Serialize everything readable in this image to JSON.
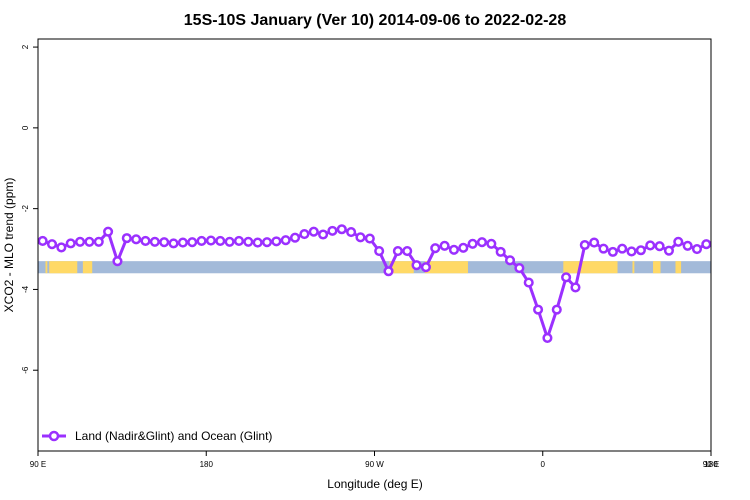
{
  "chart_data": {
    "type": "line",
    "title": "15S-10S January (Ver 10)   2014-09-06 to 2022-02-28",
    "xlabel": "Longitude (deg E)",
    "ylabel": "XCO2 - MLO trend (ppm)",
    "xlim": [
      90,
      450
    ],
    "ylim": [
      -8,
      2.2
    ],
    "x_ticks": [
      {
        "value": 90,
        "label": "90 E"
      },
      {
        "value": 180,
        "label": "180"
      },
      {
        "value": 270,
        "label": "90 W"
      },
      {
        "value": 360,
        "label": "0"
      },
      {
        "value": 450,
        "label": "90 E"
      }
    ],
    "x_ticks_right": [
      {
        "value": 450,
        "label": "180"
      }
    ],
    "y_ticks": [
      {
        "value": 2,
        "label": "2"
      },
      {
        "value": 0,
        "label": "0"
      },
      {
        "value": -2,
        "label": "-2"
      },
      {
        "value": -4,
        "label": "-4"
      },
      {
        "value": -6,
        "label": "-6"
      }
    ],
    "grid": false,
    "legend": {
      "position": "bottom-left"
    },
    "colors": {
      "series": "#9b30ff",
      "ocean": "#a3bad9",
      "land": "#ffd966"
    },
    "surface_strip": {
      "y_bottom": -3.6,
      "y_top": -3.3,
      "land_segments": [
        {
          "x0": 94,
          "x1": 95
        },
        {
          "x0": 96,
          "x1": 111
        },
        {
          "x0": 114,
          "x1": 119
        },
        {
          "x0": 278,
          "x1": 291
        },
        {
          "x0": 297,
          "x1": 320
        },
        {
          "x0": 371,
          "x1": 400
        },
        {
          "x0": 408,
          "x1": 409
        },
        {
          "x0": 419,
          "x1": 423
        },
        {
          "x0": 431,
          "x1": 434
        }
      ]
    },
    "series": [
      {
        "name": "Land (Nadir&Glint) and Ocean (Glint)",
        "x": [
          92.5,
          97.5,
          102.5,
          107.5,
          112.5,
          117.5,
          122.5,
          127.5,
          132.5,
          137.5,
          142.5,
          147.5,
          152.5,
          157.5,
          162.5,
          167.5,
          172.5,
          177.5,
          182.5,
          187.5,
          192.5,
          197.5,
          202.5,
          207.5,
          212.5,
          217.5,
          222.5,
          227.5,
          232.5,
          237.5,
          242.5,
          247.5,
          252.5,
          257.5,
          262.5,
          267.5,
          272.5,
          277.5,
          282.5,
          287.5,
          292.5,
          297.5,
          302.5,
          307.5,
          312.5,
          317.5,
          322.5,
          327.5,
          332.5,
          337.5,
          342.5,
          347.5,
          352.5,
          357.5,
          362.5,
          367.5,
          372.5,
          377.5,
          382.5,
          387.5,
          392.5,
          397.5,
          402.5,
          407.5,
          412.5,
          417.5,
          422.5,
          427.5,
          432.5,
          437.5,
          442.5,
          447.5
        ],
        "y": [
          -2.8,
          -2.88,
          -2.96,
          -2.86,
          -2.82,
          -2.82,
          -2.82,
          -2.57,
          -3.3,
          -2.73,
          -2.76,
          -2.8,
          -2.82,
          -2.83,
          -2.86,
          -2.84,
          -2.83,
          -2.8,
          -2.79,
          -2.8,
          -2.82,
          -2.8,
          -2.82,
          -2.84,
          -2.83,
          -2.81,
          -2.78,
          -2.72,
          -2.63,
          -2.57,
          -2.64,
          -2.55,
          -2.51,
          -2.58,
          -2.71,
          -2.74,
          -3.05,
          -3.55,
          -3.05,
          -3.05,
          -3.4,
          -3.45,
          -2.98,
          -2.92,
          -3.02,
          -2.97,
          -2.87,
          -2.83,
          -2.87,
          -3.07,
          -3.28,
          -3.47,
          -3.83,
          -4.5,
          -5.2,
          -4.5,
          -3.7,
          -3.95,
          -2.9,
          -2.84,
          -2.99,
          -3.07,
          -2.99,
          -3.06,
          -3.03,
          -2.91,
          -2.93,
          -3.04,
          -2.82,
          -2.92,
          -3.0,
          -2.88
        ]
      }
    ]
  }
}
